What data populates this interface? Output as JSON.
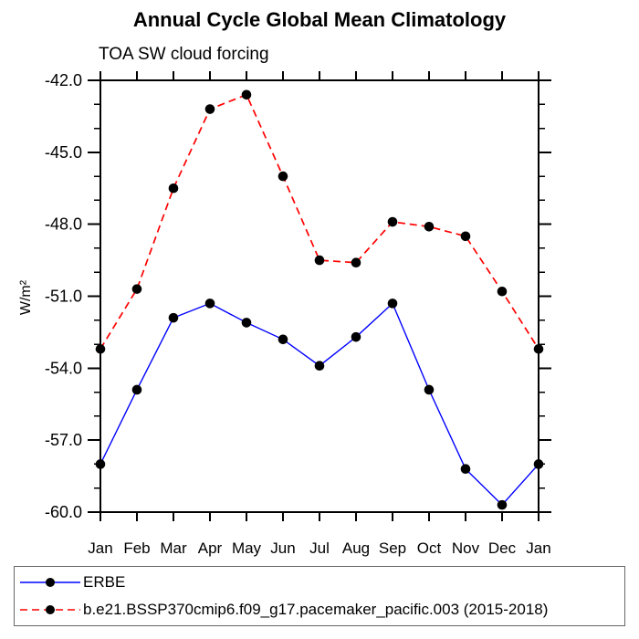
{
  "chart_data": {
    "type": "line",
    "title": "Annual Cycle Global Mean Climatology",
    "subtitle": "TOA SW cloud forcing",
    "ylabel": "W/m²",
    "xlabel": "",
    "x_categories": [
      "Jan",
      "Feb",
      "Mar",
      "Apr",
      "May",
      "Jun",
      "Jul",
      "Aug",
      "Sep",
      "Oct",
      "Nov",
      "Dec",
      "Jan"
    ],
    "ylim": [
      -60.0,
      -42.0
    ],
    "ytick_major_interval": 3,
    "ytick_minor_interval": 1,
    "ytick_labels": [
      "-42.0",
      "-45.0",
      "-48.0",
      "-51.0",
      "-54.0",
      "-57.0",
      "-60.0"
    ],
    "grid": false,
    "legend_position": "bottom-left-box",
    "axis_color": "#000000",
    "marker": "filled-circle",
    "marker_color": "#000000",
    "series": [
      {
        "name": "ERBE",
        "color": "#0000ff",
        "style": "solid",
        "values": [
          -58.0,
          -54.9,
          -51.9,
          -51.3,
          -52.1,
          -52.8,
          -53.9,
          -52.7,
          -51.3,
          -54.9,
          -58.2,
          -59.7,
          -58.0
        ]
      },
      {
        "name": "b.e21.BSSP370cmip6.f09_g17.pacemaker_pacific.003 (2015-2018)",
        "color": "#ff0000",
        "style": "dashed",
        "values": [
          -53.2,
          -50.7,
          -46.5,
          -43.2,
          -42.6,
          -46.0,
          -49.5,
          -49.6,
          -47.9,
          -48.1,
          -48.5,
          -50.8,
          -53.2
        ]
      }
    ]
  }
}
